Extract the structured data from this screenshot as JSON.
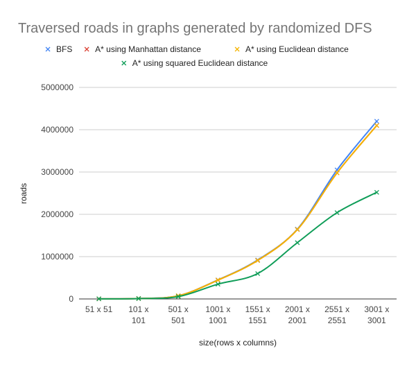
{
  "chart_data": {
    "type": "line",
    "title": "Traversed roads in graphs generated by randomized DFS",
    "xlabel": "size(rows x columns)",
    "ylabel": "roads",
    "categories": [
      [
        "51 x 51"
      ],
      [
        "101 x",
        "101"
      ],
      [
        "501 x",
        "501"
      ],
      [
        "1001 x",
        "1001"
      ],
      [
        "1551 x",
        "1551"
      ],
      [
        "2001 x",
        "2001"
      ],
      [
        "2551 x",
        "2551"
      ],
      [
        "3001 x",
        "3001"
      ]
    ],
    "ylim": [
      0,
      5000000
    ],
    "yticks": [
      0,
      1000000,
      2000000,
      3000000,
      4000000,
      5000000
    ],
    "ytick_labels": [
      "0",
      "1000000",
      "2000000",
      "3000000",
      "4000000",
      "5000000"
    ],
    "grid": true,
    "legend_position": "top",
    "series": [
      {
        "name": "BFS",
        "color": "#4285f4",
        "values": [
          2600,
          10100,
          75000,
          450000,
          920000,
          1650000,
          3050000,
          4200000
        ]
      },
      {
        "name": "A* using Manhattan distance",
        "color": "#db4437",
        "values": [
          2600,
          10100,
          74000,
          445000,
          910000,
          1640000,
          2980000,
          4100000
        ]
      },
      {
        "name": "A* using Euclidean distance",
        "color": "#f4b400",
        "values": [
          2600,
          10100,
          74000,
          445000,
          910000,
          1640000,
          2980000,
          4100000
        ]
      },
      {
        "name": "A* using squared Euclidean distance",
        "color": "#0f9d58",
        "values": [
          2500,
          9000,
          55000,
          350000,
          600000,
          1330000,
          2040000,
          2520000
        ]
      }
    ]
  }
}
